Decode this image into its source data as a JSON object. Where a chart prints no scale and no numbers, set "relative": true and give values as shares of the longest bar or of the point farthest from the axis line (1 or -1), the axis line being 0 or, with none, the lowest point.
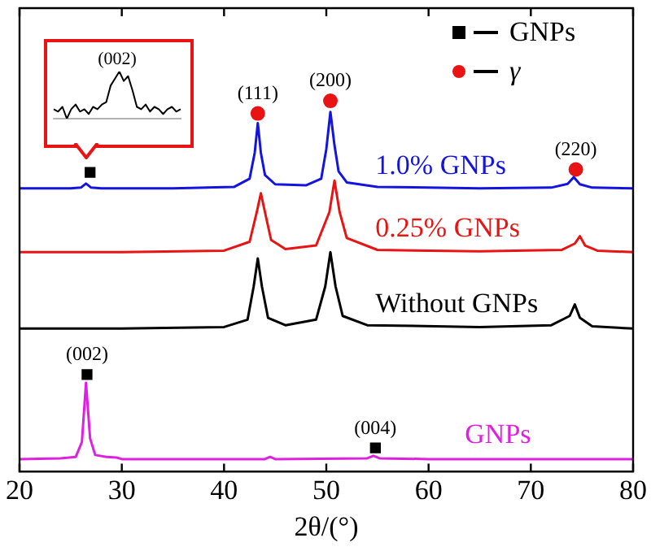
{
  "chart_data": [
    {
      "type": "line",
      "xlabel": "2θ/(°)",
      "xlim": [
        20,
        80
      ],
      "xticks": [
        20,
        30,
        40,
        50,
        60,
        70,
        80
      ],
      "relative": true,
      "legend": "top right",
      "series": [
        {
          "name": "1.0% GNPs",
          "color": "#1414e0",
          "type": "line",
          "x": [
            20,
            25,
            26,
            26.5,
            27,
            28,
            35,
            41,
            42.5,
            43,
            43.3,
            43.6,
            44,
            45,
            48,
            49.5,
            50,
            50.4,
            50.8,
            51.2,
            52,
            55,
            65,
            72,
            73.6,
            74.2,
            74.8,
            76,
            80
          ],
          "values": [
            0.764,
            0.764,
            0.766,
            0.777,
            0.766,
            0.764,
            0.764,
            0.768,
            0.79,
            0.86,
            0.94,
            0.86,
            0.8,
            0.775,
            0.772,
            0.79,
            0.87,
            0.97,
            0.88,
            0.81,
            0.78,
            0.768,
            0.764,
            0.766,
            0.776,
            0.794,
            0.775,
            0.766,
            0.764
          ]
        },
        {
          "name": "0.25% GNPs",
          "color": "#e81414",
          "type": "line",
          "x": [
            20,
            30,
            40,
            42.5,
            43.2,
            43.6,
            44,
            44.6,
            46,
            49,
            50.3,
            50.8,
            51.3,
            52,
            55,
            65,
            73,
            74.3,
            74.8,
            75.3,
            76.5,
            80
          ],
          "values": [
            0.592,
            0.592,
            0.596,
            0.62,
            0.7,
            0.751,
            0.7,
            0.625,
            0.6,
            0.61,
            0.7,
            0.785,
            0.7,
            0.63,
            0.598,
            0.594,
            0.598,
            0.615,
            0.635,
            0.61,
            0.596,
            0.592
          ]
        },
        {
          "name": "Without GNPs",
          "color": "#000000",
          "type": "line",
          "x": [
            20,
            30,
            40,
            42.3,
            42.9,
            43.3,
            43.7,
            44.3,
            46,
            49,
            49.9,
            50.4,
            50.9,
            51.6,
            54,
            65,
            72,
            73.8,
            74.3,
            74.8,
            76,
            80
          ],
          "values": [
            0.386,
            0.386,
            0.39,
            0.41,
            0.5,
            0.575,
            0.5,
            0.415,
            0.395,
            0.41,
            0.5,
            0.592,
            0.5,
            0.42,
            0.395,
            0.39,
            0.395,
            0.42,
            0.451,
            0.415,
            0.392,
            0.386
          ]
        },
        {
          "name": "GNPs",
          "color": "#e020e0",
          "type": "line",
          "x": [
            20,
            24,
            25.5,
            26.1,
            26.5,
            26.9,
            27.4,
            28.5,
            29.5,
            30,
            40,
            44,
            44.5,
            45,
            54,
            54.6,
            55.2,
            60,
            80
          ],
          "values": [
            0.034,
            0.036,
            0.04,
            0.08,
            0.24,
            0.09,
            0.045,
            0.04,
            0.038,
            0.034,
            0.034,
            0.034,
            0.04,
            0.034,
            0.036,
            0.043,
            0.036,
            0.034,
            0.034
          ]
        },
        {
          "name": "GNPs",
          "color": "#000000",
          "type": "scatter",
          "marker": "square",
          "x": [
            26.9,
            26.6,
            54.8
          ],
          "values": [
            0.807,
            0.262,
            0.064
          ]
        },
        {
          "name": "γ",
          "color": "#e81414",
          "type": "scatter",
          "marker": "circle",
          "x": [
            43.3,
            50.4,
            74.4
          ],
          "values": [
            0.966,
            1,
            0.815
          ]
        }
      ],
      "annotations": [
        {
          "text": "(111)",
          "x": 43.3,
          "y": 0.966
        },
        {
          "text": "(200)",
          "x": 50.4,
          "y": 1
        },
        {
          "text": "(220)",
          "x": 74.4,
          "y": 0.815
        },
        {
          "text": "(002)",
          "x": 26.6,
          "y": 0.262
        },
        {
          "text": "(004)",
          "x": 54.8,
          "y": 0.064
        }
      ]
    },
    {
      "type": "line",
      "relative": true,
      "annotations": [
        "(002)"
      ],
      "categories": [
        null,
        null,
        null,
        null,
        null,
        null,
        null,
        null,
        null,
        null,
        null,
        null,
        null,
        null,
        null,
        null,
        null,
        null,
        null,
        null,
        null,
        null,
        null,
        null,
        null,
        null,
        null,
        null,
        null,
        null
      ],
      "series": [
        {
          "color": "#000000",
          "values": [
            0.2,
            0.15,
            0.25,
            0,
            0.2,
            0.3,
            0.15,
            0.2,
            0.1,
            0.25,
            0.2,
            0.3,
            0.35,
            0.7,
            0.85,
            1,
            0.8,
            0.9,
            0.6,
            0.25,
            0.2,
            0.3,
            0.15,
            0.25,
            0.2,
            0.1,
            0.2,
            0.25,
            0.15,
            0.2
          ]
        }
      ]
    }
  ]
}
